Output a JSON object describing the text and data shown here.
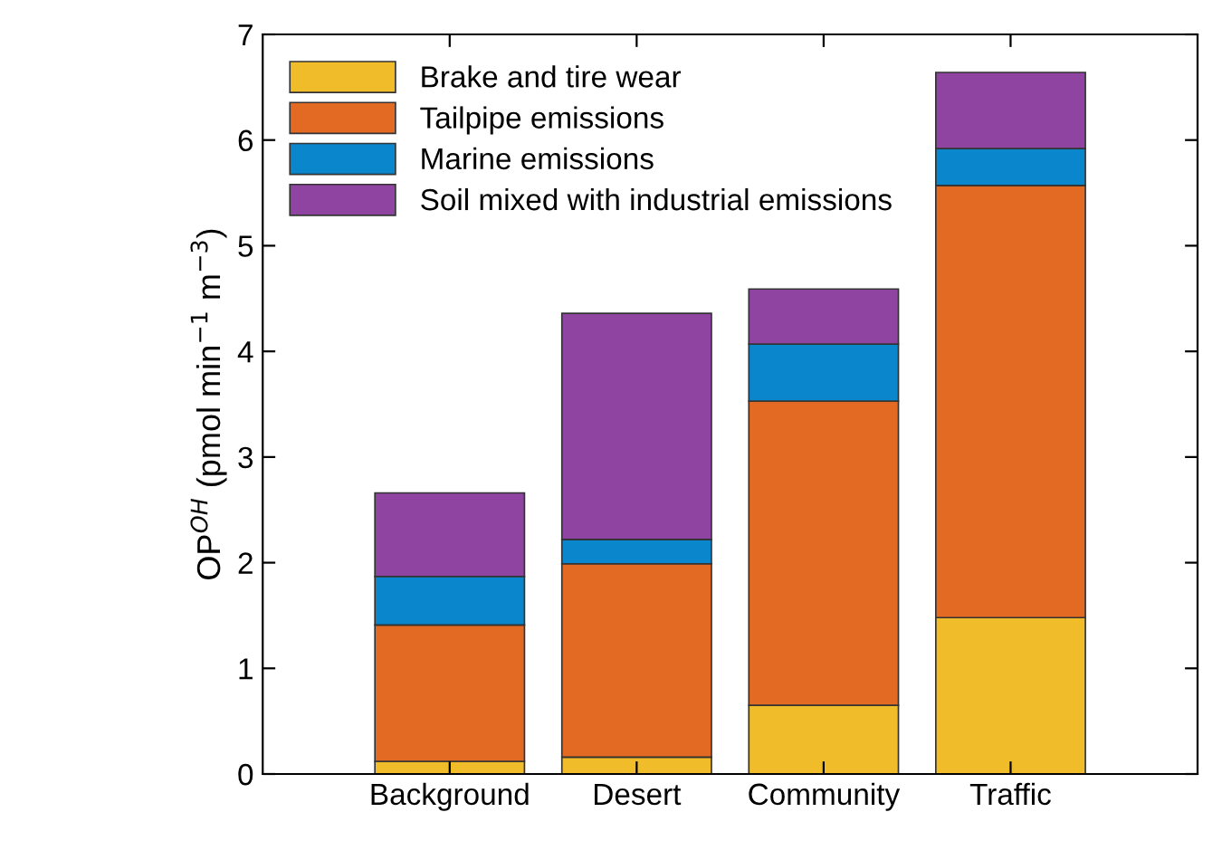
{
  "chart_data": {
    "type": "bar",
    "stacked": true,
    "ylabel": "OP$^{OH}$ (pmol min$^{−1}$ m$^{−3}$)",
    "categories": [
      "Background",
      "Desert",
      "Community",
      "Traffic"
    ],
    "series": [
      {
        "name": "Brake and tire wear",
        "color": "#f0bc2a",
        "values": [
          0.12,
          0.16,
          0.65,
          1.48
        ]
      },
      {
        "name": "Tailpipe emissions",
        "color": "#e26a22",
        "values": [
          1.29,
          1.83,
          2.88,
          4.09
        ]
      },
      {
        "name": "Marine emissions",
        "color": "#0a86cc",
        "values": [
          0.46,
          0.23,
          0.54,
          0.35
        ]
      },
      {
        "name": "Soil mixed with industrial emissions",
        "color": "#8e44a0",
        "values": [
          0.79,
          2.14,
          0.52,
          0.72
        ]
      }
    ],
    "ylim": [
      0,
      7
    ],
    "yticks": [
      0,
      1,
      2,
      3,
      4,
      5,
      6,
      7
    ],
    "grid": false,
    "legend": "top left"
  }
}
